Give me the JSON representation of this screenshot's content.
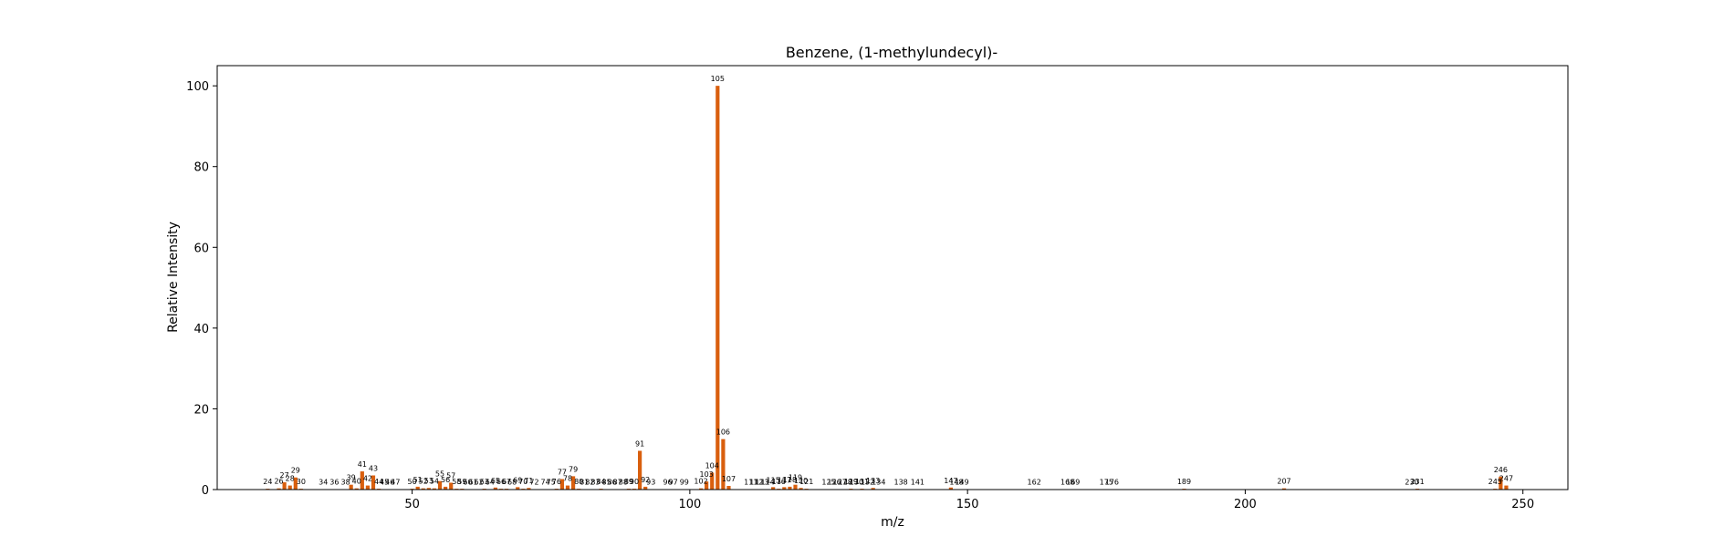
{
  "chart_data": {
    "type": "bar",
    "title": "Benzene, (1-methylundecyl)-",
    "xlabel": "m/z",
    "ylabel": "Relative Intensity",
    "xlim": [
      14.9,
      258.1
    ],
    "ylim": [
      0,
      105
    ],
    "xticks": [
      50,
      100,
      150,
      200,
      250
    ],
    "yticks": [
      0,
      20,
      40,
      60,
      80,
      100
    ],
    "bar_color": "#d95f0e",
    "grid": false,
    "legend": "none",
    "series": [
      {
        "x": [
          24,
          26,
          27,
          28,
          29,
          30,
          34,
          36,
          38,
          39,
          40,
          41,
          42,
          43,
          44,
          45,
          46,
          47,
          50,
          51,
          52,
          53,
          54,
          55,
          56,
          57,
          58,
          59,
          60,
          61,
          62,
          63,
          64,
          65,
          66,
          67,
          68,
          69,
          70,
          71,
          72,
          74,
          75,
          76,
          77,
          78,
          79,
          80,
          81,
          82,
          83,
          84,
          85,
          86,
          87,
          88,
          89,
          90,
          91,
          92,
          93,
          96,
          97,
          99,
          102,
          103,
          104,
          105,
          106,
          107,
          111,
          112,
          113,
          114,
          115,
          116,
          117,
          118,
          119,
          120,
          121,
          125,
          126,
          127,
          128,
          129,
          130,
          131,
          132,
          133,
          134,
          138,
          141,
          147,
          148,
          149,
          162,
          168,
          169,
          175,
          176,
          189,
          207,
          230,
          231,
          245,
          246,
          247
        ],
        "y": [
          0.2,
          0.3,
          1.8,
          1.0,
          3.0,
          0.2,
          0.1,
          0.1,
          0.1,
          1.2,
          0.3,
          4.5,
          1.0,
          3.5,
          0.2,
          0.1,
          0.1,
          0.1,
          0.2,
          0.7,
          0.3,
          0.4,
          0.3,
          2.1,
          0.7,
          1.7,
          0.2,
          0.2,
          0.1,
          0.1,
          0.1,
          0.2,
          0.1,
          0.5,
          0.2,
          0.2,
          0.1,
          0.6,
          0.2,
          0.4,
          0.1,
          0.1,
          0.1,
          0.2,
          2.6,
          1.0,
          3.3,
          0.2,
          0.1,
          0.1,
          0.1,
          0.2,
          0.1,
          0.1,
          0.1,
          0.1,
          0.2,
          0.2,
          9.6,
          0.7,
          0.1,
          0.1,
          0.1,
          0.1,
          0.3,
          2.0,
          4.2,
          100.0,
          12.5,
          0.9,
          0.1,
          0.1,
          0.1,
          0.1,
          0.6,
          0.2,
          0.6,
          0.7,
          1.2,
          0.4,
          0.2,
          0.1,
          0.1,
          0.1,
          0.1,
          0.2,
          0.1,
          0.2,
          0.1,
          0.4,
          0.1,
          0.1,
          0.1,
          0.5,
          0.1,
          0.1,
          0.1,
          0.1,
          0.1,
          0.1,
          0.1,
          0.2,
          0.3,
          0.1,
          0.2,
          0.2,
          3.2,
          1.0
        ],
        "labels": [
          "24",
          "26",
          "27",
          "28",
          "29",
          "30",
          "34",
          "36",
          "38",
          "39",
          "40",
          "41",
          "42",
          "43",
          "44",
          "45",
          "46",
          "47",
          "50",
          "51",
          "52",
          "53",
          "54",
          "55",
          "56",
          "57",
          "58",
          "59",
          "60",
          "61",
          "62",
          "63",
          "64",
          "65",
          "66",
          "67",
          "68",
          "69",
          "70",
          "71",
          "72",
          "74",
          "75",
          "76",
          "77",
          "78",
          "79",
          "80",
          "81",
          "82",
          "83",
          "84",
          "85",
          "86",
          "87",
          "88",
          "89",
          "90",
          "91",
          "92",
          "93",
          "96",
          "97",
          "99",
          "102",
          "103",
          "104",
          "105",
          "106",
          "107",
          "111",
          "112",
          "113",
          "114",
          "115",
          "116",
          "117",
          "118",
          "119",
          "120",
          "121",
          "125",
          "126",
          "127",
          "128",
          "129",
          "130",
          "131",
          "132",
          "133",
          "134",
          "138",
          "141",
          "147",
          "148",
          "149",
          "162",
          "168",
          "169",
          "175",
          "176",
          "189",
          "207",
          "230",
          "231",
          "245",
          "246",
          "247"
        ]
      }
    ]
  }
}
